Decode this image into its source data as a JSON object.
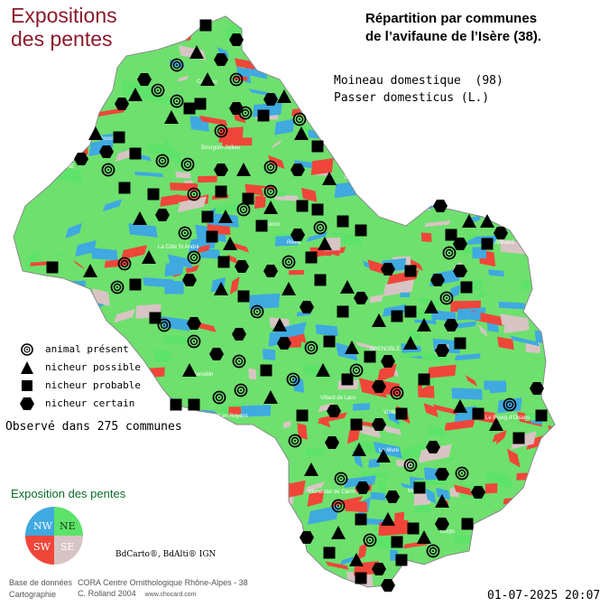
{
  "title_left": [
    "Expositions",
    "des pentes"
  ],
  "title_right": [
    "Répartition par communes",
    "de l’avifaune de l’Isère (38)."
  ],
  "species": {
    "common": "Moineau domestique  (98)",
    "latin": "Passer domesticus (L.)"
  },
  "legend": [
    {
      "symbol": "circle-dot-icon",
      "label": "animal présent"
    },
    {
      "symbol": "triangle-icon",
      "label": "nicheur possible"
    },
    {
      "symbol": "square-icon",
      "label": "nicheur probable"
    },
    {
      "symbol": "hexagon-icon",
      "label": "nicheur certain"
    }
  ],
  "observed": "Observé dans 275 communes",
  "exposition": {
    "title": "Exposition des pentes",
    "nw": "NW",
    "ne": "NE",
    "sw": "SW",
    "se": "SE",
    "colors": {
      "nw": "#3fa9e0",
      "ne": "#5ee36a",
      "sw": "#f0463a",
      "se": "#d8c4c4"
    }
  },
  "credits": {
    "row1_label": "Base de données",
    "row1_value": "CORA Centre Ornithologique Rhône-Alpes - 38",
    "row2_label": "Cartographie",
    "row2_value": "C. Rolland 2004",
    "row2_url": "www.chocard.com"
  },
  "bdcarto": "BdCarto®, BdAlti® IGN",
  "date": "01-07-2025 20:07",
  "places": [
    "VIENNE",
    "Le Pont de Beauvoisin",
    "GRENOBLE",
    "Vizille",
    "Pont en Royans",
    "Villard de Lans",
    "Monestier de Clermont",
    "Le Bourg d'Oisans",
    "St Marcellin",
    "La Côte St André",
    "Crémieu",
    "Voiron",
    "Allevard",
    "Rives",
    "Mens",
    "Corps",
    "La Mure",
    "Roussillon",
    "Bourgoin-Jallieu"
  ]
}
